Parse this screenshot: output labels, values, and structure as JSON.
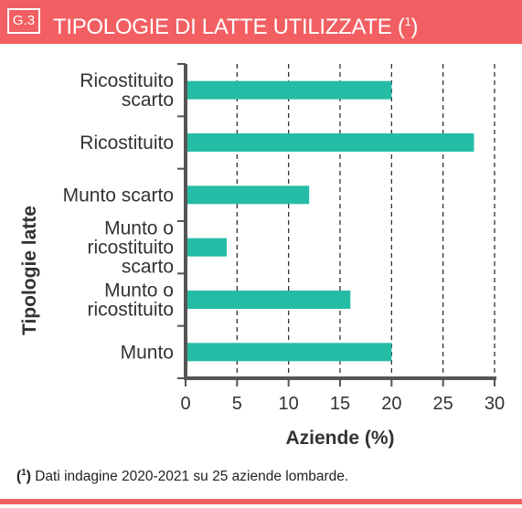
{
  "header": {
    "badge": "G.3",
    "title": "TIPOLOGIE DI LATTE UTILIZZATE (",
    "title_sup": "1",
    "title_close": ")",
    "color": "#f25f62"
  },
  "footnote": {
    "open": "(",
    "sup": "1",
    "close": ")",
    "text": " Dati indagine 2020-2021 su 25 aziende lombarde."
  },
  "chart_data": {
    "type": "bar",
    "orientation": "horizontal",
    "categories": [
      [
        "Ricostituito",
        "scarto"
      ],
      [
        "Ricostituito"
      ],
      [
        "Munto scarto"
      ],
      [
        "Munto o",
        "ricostituito",
        "scarto"
      ],
      [
        "Munto o",
        "ricostituito"
      ],
      [
        "Munto"
      ]
    ],
    "values": [
      20,
      28,
      12,
      4,
      16,
      20
    ],
    "xlabel": "Aziende (%)",
    "ylabel": "Tipologie latte",
    "xlim": [
      0,
      30
    ],
    "xticks": [
      0,
      5,
      10,
      15,
      20,
      25,
      30
    ],
    "grid": "vertical dashed",
    "bar_color": "#25bca5",
    "axis_color": "#555555"
  }
}
